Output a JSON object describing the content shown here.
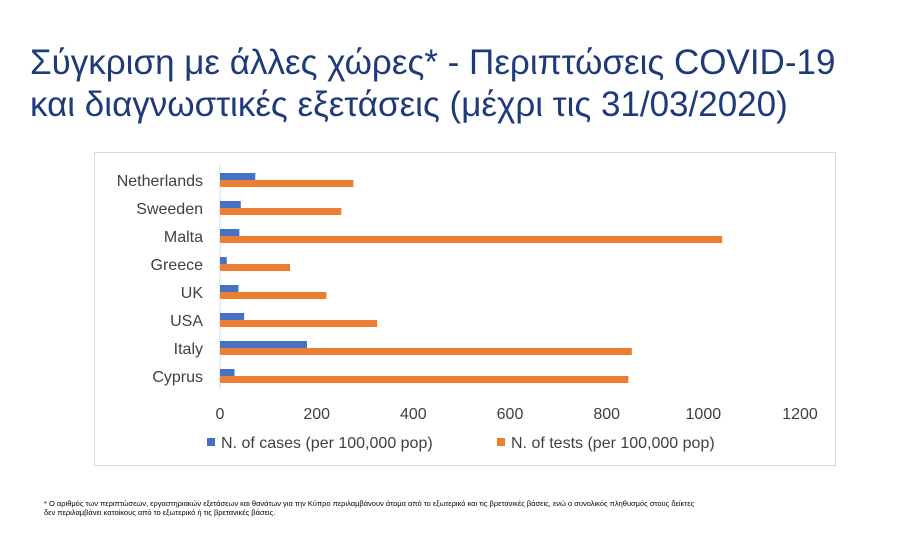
{
  "slide": {
    "title_line1": "Σύγκριση με άλλες χώρες* - Περιπτώσεις COVID-19",
    "title_line2": "και διαγνωστικές εξετάσεις (μέχρι τις 31/03/2020)",
    "footnote_line1": "* Ο αριθμός των περιπτώσεων, εργαστηριακών εξετάσεων και θανάτων για την Κύπρο περιλαμβάνουν άτομα από το εξωτερικό και τις βρετανικές βάσεις, ενώ ο συνολικός πληθυσμός στους δείκτες",
    "footnote_line2": "δεν περιλαμβάνει κατοίκους από το εξωτερικό ή τις βρετανικές βάσεις."
  },
  "colors": {
    "title": "#1f3a7a",
    "cases": "#4472c4",
    "tests": "#ed7d31"
  },
  "chart_data": {
    "type": "bar",
    "orientation": "horizontal",
    "categories": [
      "Netherlands",
      "Sweeden",
      "Malta",
      "Greece",
      "UK",
      "USA",
      "Italy",
      "Cyprus"
    ],
    "series": [
      {
        "name": "N. of cases (per 100,000 pop)",
        "values": [
          73,
          43,
          40,
          14,
          38,
          50,
          180,
          30
        ]
      },
      {
        "name": "N. of tests (per 100,000 pop)",
        "values": [
          276,
          251,
          1039,
          145,
          220,
          325,
          852,
          845
        ]
      }
    ],
    "x_ticks": [
      "0",
      "200",
      "400",
      "600",
      "800",
      "1000",
      "1200"
    ],
    "xlim": [
      0,
      1200
    ],
    "grid": false,
    "legend_position": "bottom"
  }
}
